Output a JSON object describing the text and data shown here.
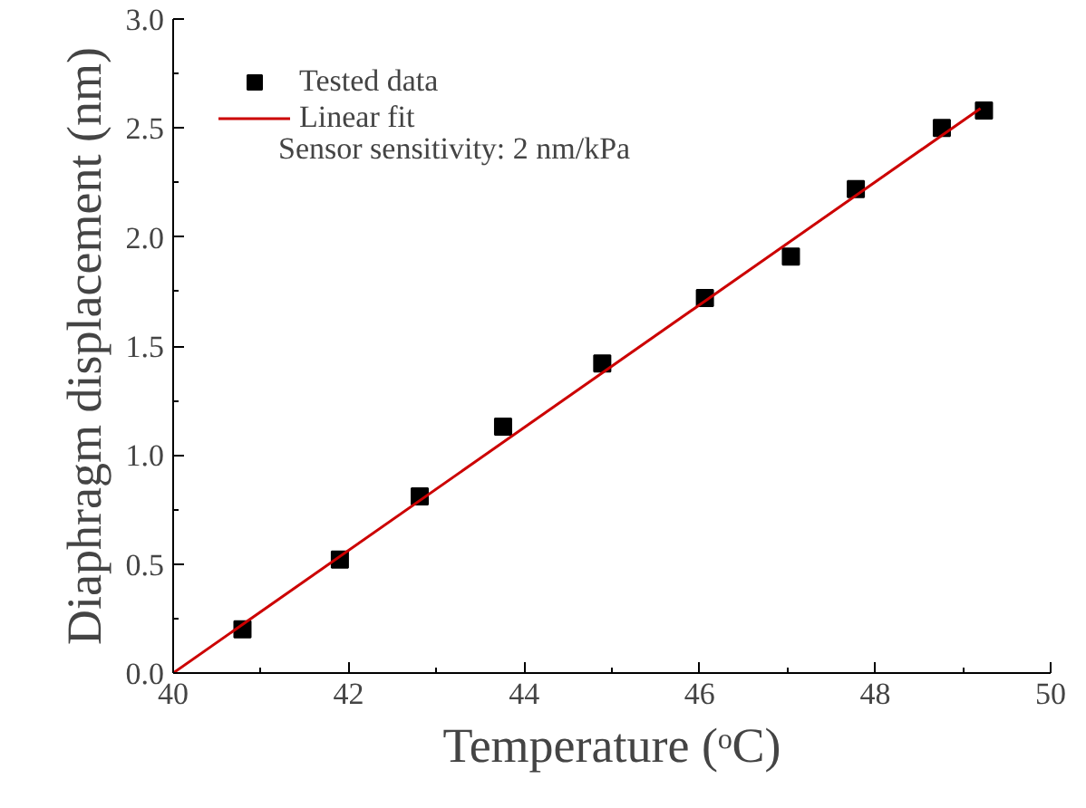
{
  "chart_data": {
    "type": "scatter",
    "xlabel": "Temperature (ᵒC)",
    "ylabel": "Diaphragm displacement (nm)",
    "xlim": [
      40,
      50
    ],
    "xticks": [
      40,
      42,
      44,
      46,
      48,
      50
    ],
    "ylim": [
      0,
      3.0
    ],
    "yticks": [
      {
        "value": 0,
        "label": "0.0"
      },
      {
        "value": 0.5,
        "label": "0.5"
      },
      {
        "value": 1.0,
        "label": "1.0"
      },
      {
        "value": 1.5,
        "label": "1.5"
      },
      {
        "value": 2.0,
        "label": "2.0"
      },
      {
        "value": 2.5,
        "label": "2.5"
      },
      {
        "value": 3.0,
        "label": "3.0"
      }
    ],
    "grid": false,
    "legend": "top left",
    "annotations": [
      "Sensor sensitivity: 2 nm/kPa"
    ],
    "series": [
      {
        "name": "Tested data",
        "marker": "square",
        "color": "#000000",
        "x": [
          40.79,
          41.9,
          42.81,
          43.76,
          44.89,
          46.06,
          47.04,
          47.78,
          48.76,
          49.24
        ],
        "values": [
          0.2,
          0.52,
          0.81,
          1.13,
          1.42,
          1.72,
          1.91,
          2.22,
          2.5,
          2.58
        ]
      },
      {
        "name": "Linear fit",
        "type": "line",
        "color": "#cc0000",
        "line_style": "solid",
        "x": [
          40,
          49.2
        ],
        "values": [
          0,
          2.59
        ]
      }
    ]
  }
}
